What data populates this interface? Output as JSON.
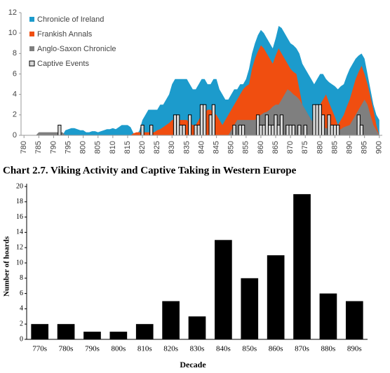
{
  "chart_data": [
    {
      "type": "area",
      "title": "Chart 2.7. Viking Activity and Captive Taking in Western Europe",
      "x": [
        780,
        781,
        782,
        783,
        784,
        785,
        786,
        787,
        788,
        789,
        790,
        791,
        792,
        793,
        794,
        795,
        796,
        797,
        798,
        799,
        800,
        801,
        802,
        803,
        804,
        805,
        806,
        807,
        808,
        809,
        810,
        811,
        812,
        813,
        814,
        815,
        816,
        817,
        818,
        819,
        820,
        821,
        822,
        823,
        824,
        825,
        826,
        827,
        828,
        829,
        830,
        831,
        832,
        833,
        834,
        835,
        836,
        837,
        838,
        839,
        840,
        841,
        842,
        843,
        844,
        845,
        846,
        847,
        848,
        849,
        850,
        851,
        852,
        853,
        854,
        855,
        856,
        857,
        858,
        859,
        860,
        861,
        862,
        863,
        864,
        865,
        866,
        867,
        868,
        869,
        870,
        871,
        872,
        873,
        874,
        875,
        876,
        877,
        878,
        879,
        880,
        881,
        882,
        883,
        884,
        885,
        886,
        887,
        888,
        889,
        890,
        891,
        892,
        893,
        894,
        895,
        896,
        897,
        898,
        899,
        900
      ],
      "xlim": [
        779,
        901
      ],
      "xticks": [
        780,
        785,
        790,
        795,
        800,
        805,
        810,
        815,
        820,
        825,
        830,
        835,
        840,
        845,
        850,
        855,
        860,
        865,
        870,
        875,
        880,
        885,
        890,
        895,
        900
      ],
      "ylim": [
        0,
        12
      ],
      "yticks": [
        0,
        2,
        4,
        6,
        8,
        10,
        12
      ],
      "legend": "top-left",
      "series": [
        {
          "name": "Chronicle of Ireland",
          "color": "#1c9bcc",
          "kind": "area",
          "values": [
            0,
            0,
            0,
            0,
            0,
            0,
            0,
            0,
            0,
            0,
            0,
            0,
            0,
            0,
            0.5,
            0.6,
            0.7,
            0.7,
            0.6,
            0.5,
            0.5,
            0.3,
            0.3,
            0.4,
            0.4,
            0.3,
            0.4,
            0.5,
            0.6,
            0.6,
            0.7,
            0.6,
            0.8,
            1,
            1,
            1,
            0.8,
            0.2,
            0,
            0.5,
            1.5,
            2,
            2.5,
            2.5,
            2.5,
            2.5,
            3,
            3,
            3.5,
            4,
            5,
            5.5,
            5.5,
            5.5,
            5.5,
            5.5,
            5,
            4.5,
            4.5,
            5,
            5.5,
            5.5,
            5,
            5,
            5.5,
            5.5,
            4.5,
            4,
            3.5,
            3.5,
            4,
            4.5,
            4.5,
            5,
            5,
            5.5,
            6.5,
            8,
            9,
            9.8,
            10.3,
            10,
            9.5,
            9,
            8.5,
            9.5,
            10.7,
            10.5,
            10,
            9.5,
            9,
            8.8,
            8.5,
            8,
            7,
            6.5,
            6,
            5.5,
            5,
            5.5,
            6,
            6,
            5.5,
            5.2,
            5,
            4.8,
            4.5,
            4.8,
            5,
            5.8,
            6.5,
            7,
            7.5,
            7.8,
            8,
            7.5,
            6,
            4.5,
            3,
            2,
            1.5
          ]
        },
        {
          "name": "Frankish Annals",
          "color": "#f04e10",
          "kind": "area",
          "values": [
            0,
            0,
            0,
            0,
            0,
            0,
            0,
            0,
            0,
            0,
            0,
            0,
            0,
            0,
            0,
            0,
            0,
            0,
            0,
            0,
            0,
            0,
            0,
            0,
            0,
            0,
            0,
            0,
            0,
            0,
            0,
            0,
            0,
            0,
            0,
            0,
            0,
            0.2,
            0.3,
            0.3,
            0.3,
            0.3,
            0.3,
            0.3,
            0.3,
            0.5,
            0.6,
            0.8,
            1,
            1.2,
            1.5,
            1.5,
            1.5,
            1.5,
            1.5,
            1.5,
            1.2,
            1,
            1,
            1.5,
            2,
            2.2,
            2.5,
            2.5,
            2.2,
            2,
            1.5,
            1,
            1.5,
            2,
            2.5,
            3,
            3.5,
            4,
            4.5,
            4.8,
            5,
            6.5,
            7.5,
            8.2,
            8.8,
            8.5,
            8,
            7.5,
            7,
            7.8,
            8.5,
            8,
            7.5,
            7,
            6.5,
            6.2,
            6,
            4.5,
            3,
            2.5,
            2,
            1.5,
            1,
            2,
            3,
            3.5,
            4,
            3.2,
            2.5,
            1.8,
            1,
            1.5,
            2,
            2.8,
            3.5,
            4.5,
            5.5,
            6.2,
            6.8,
            6,
            5,
            3.8,
            2.5,
            1,
            0
          ]
        },
        {
          "name": "Anglo-Saxon Chronicle",
          "color": "#7f7f7f",
          "kind": "area",
          "values": [
            0,
            0,
            0,
            0,
            0,
            0.3,
            0.3,
            0.3,
            0.3,
            0.3,
            0.3,
            0.3,
            0.3,
            0.3,
            0,
            0,
            0,
            0,
            0,
            0,
            0,
            0,
            0,
            0,
            0,
            0,
            0,
            0,
            0,
            0,
            0,
            0,
            0,
            0,
            0,
            0,
            0,
            0,
            0,
            0,
            0,
            0,
            0,
            0,
            0,
            0,
            0,
            0,
            0,
            0,
            0,
            0,
            0,
            0,
            0,
            0,
            0,
            0,
            0,
            0,
            0,
            0,
            0,
            0,
            0,
            0,
            0,
            0,
            0,
            0,
            0.5,
            1,
            1.5,
            1.5,
            1.5,
            1.5,
            1.5,
            1.5,
            1.5,
            1.8,
            2,
            2.2,
            2.3,
            2.5,
            2.8,
            3,
            3,
            3.5,
            4,
            4.5,
            4.3,
            4,
            3.8,
            3.5,
            3,
            2.5,
            2,
            1.5,
            1.2,
            1,
            1,
            0.8,
            0.7,
            0.6,
            0.5,
            0.5,
            0.5,
            0.6,
            0.8,
            0.9,
            1,
            1.5,
            2,
            2.5,
            3,
            3.5,
            3,
            2,
            1,
            0.5,
            0
          ]
        },
        {
          "name": "Captive Events",
          "color": "#d9d9d9",
          "kind": "bar",
          "values": [
            0,
            0,
            0,
            0,
            0,
            0,
            0,
            0,
            0,
            0,
            0,
            0,
            1,
            0,
            0,
            0,
            0,
            0,
            0,
            0,
            0,
            0,
            0,
            0,
            0,
            0,
            0,
            0,
            0,
            0,
            0,
            0,
            0,
            0,
            0,
            0,
            0,
            0,
            0,
            0,
            1,
            0,
            0,
            1,
            0,
            0,
            0,
            0,
            0,
            0,
            0,
            2,
            2,
            1,
            1,
            0,
            2,
            0,
            1,
            1,
            3,
            3,
            0,
            2,
            3,
            0,
            0,
            0,
            0,
            0,
            0,
            1,
            0,
            1,
            1,
            0,
            0,
            0,
            0,
            2,
            1,
            1,
            2,
            1,
            1,
            2,
            1,
            2,
            0,
            1,
            1,
            1,
            0,
            1,
            0,
            1,
            0,
            0,
            3,
            3,
            3,
            2,
            0,
            2,
            1,
            1,
            1,
            0,
            0,
            0,
            0,
            0,
            0,
            2,
            1,
            0,
            0,
            0,
            0,
            0,
            0
          ]
        }
      ]
    },
    {
      "type": "bar",
      "xlabel": "Decade",
      "ylabel": "Number of hoards",
      "categories": [
        "770s",
        "780s",
        "790s",
        "800s",
        "810s",
        "820s",
        "830s",
        "840s",
        "850s",
        "860s",
        "870s",
        "880s",
        "890s"
      ],
      "values": [
        2,
        2,
        1,
        1,
        2,
        5,
        3,
        13,
        8,
        11,
        19,
        6,
        5
      ],
      "color": "#000000",
      "ylim": [
        0,
        20
      ],
      "yticks": [
        0,
        2,
        4,
        6,
        8,
        10,
        12,
        14,
        16,
        18,
        20
      ]
    }
  ]
}
